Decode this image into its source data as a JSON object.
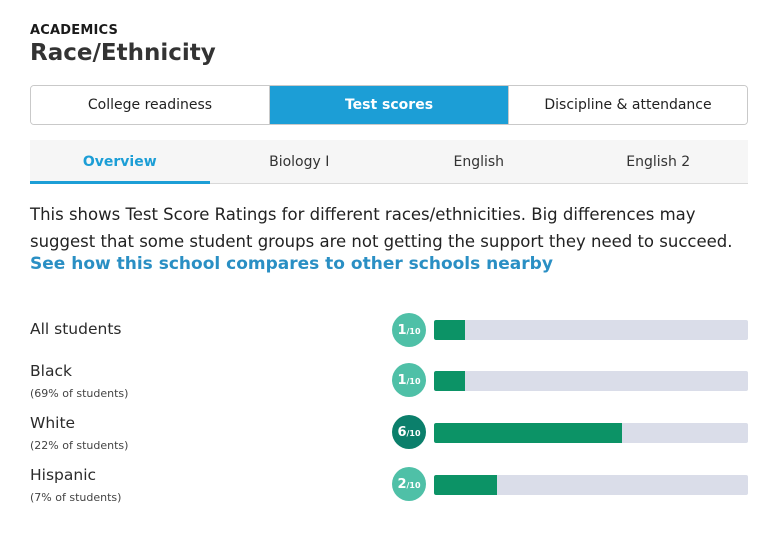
{
  "header": {
    "eyebrow": "ACADEMICS",
    "title": "Race/Ethnicity"
  },
  "main_tabs": [
    {
      "label": "College readiness",
      "active": false
    },
    {
      "label": "Test scores",
      "active": true
    },
    {
      "label": "Discipline & attendance",
      "active": false
    }
  ],
  "sub_tabs": [
    {
      "label": "Overview",
      "active": true
    },
    {
      "label": "Biology I",
      "active": false
    },
    {
      "label": "English",
      "active": false
    },
    {
      "label": "English 2",
      "active": false
    }
  ],
  "description": "This shows Test Score Ratings for different races/ethnicities. Big differences may suggest that some student groups are not getting the support they need to succeed.",
  "compare_link": "See how this school compares to other schools nearby",
  "rating_denominator": "/10",
  "groups": [
    {
      "label": "All students",
      "sub": "",
      "rating": "1",
      "rating_value": 1
    },
    {
      "label": "Black",
      "sub": "(69% of students)",
      "rating": "1",
      "rating_value": 1
    },
    {
      "label": "White",
      "sub": "(22% of students)",
      "rating": "6",
      "rating_value": 6
    },
    {
      "label": "Hispanic",
      "sub": "(7% of students)",
      "rating": "2",
      "rating_value": 2
    }
  ],
  "colors": {
    "accent": "#1c9ed6",
    "bar_fill": "#0c9366",
    "bar_track": "#dadde9",
    "badge_light": "#4fc0a7",
    "badge_dark": "#0b7f6b"
  }
}
